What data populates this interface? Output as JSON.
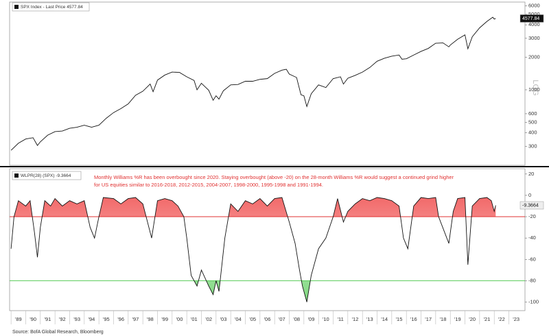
{
  "chart_data": [
    {
      "type": "line",
      "log_scale": true,
      "scale_label": "LOG",
      "x": [
        1989.0,
        1989.5,
        1990.0,
        1990.5,
        1990.8,
        1991.0,
        1991.5,
        1992.0,
        1992.5,
        1993.0,
        1993.5,
        1994.0,
        1994.5,
        1995.0,
        1995.5,
        1996.0,
        1996.5,
        1997.0,
        1997.5,
        1998.0,
        1998.5,
        1998.7,
        1999.0,
        1999.5,
        2000.0,
        2000.5,
        2001.0,
        2001.5,
        2001.7,
        2002.0,
        2002.5,
        2002.8,
        2003.0,
        2003.2,
        2003.5,
        2004.0,
        2004.5,
        2005.0,
        2005.5,
        2006.0,
        2006.5,
        2007.0,
        2007.5,
        2007.8,
        2008.0,
        2008.5,
        2008.8,
        2009.0,
        2009.2,
        2009.5,
        2010.0,
        2010.5,
        2011.0,
        2011.5,
        2011.7,
        2012.0,
        2012.5,
        2013.0,
        2013.5,
        2014.0,
        2014.5,
        2015.0,
        2015.5,
        2015.7,
        2016.0,
        2016.5,
        2017.0,
        2017.5,
        2018.0,
        2018.5,
        2018.9,
        2019.0,
        2019.5,
        2020.0,
        2020.2,
        2020.5,
        2021.0,
        2021.5,
        2021.9,
        2022.0,
        2022.1
      ],
      "series": [
        {
          "name": "SPX Index - Last Price 4577.84",
          "color": "#111111",
          "values": [
            275,
            320,
            350,
            360,
            305,
            330,
            380,
            410,
            415,
            440,
            450,
            470,
            450,
            470,
            545,
            615,
            670,
            740,
            890,
            970,
            1130,
            960,
            1230,
            1370,
            1460,
            1450,
            1320,
            1220,
            1000,
            1150,
            990,
            800,
            880,
            820,
            980,
            1110,
            1120,
            1200,
            1200,
            1250,
            1270,
            1420,
            1520,
            1550,
            1400,
            1300,
            900,
            880,
            700,
            920,
            1110,
            1050,
            1270,
            1320,
            1130,
            1280,
            1360,
            1460,
            1610,
            1840,
            1960,
            2050,
            2100,
            1920,
            1940,
            2100,
            2270,
            2420,
            2700,
            2720,
            2500,
            2600,
            2940,
            3230,
            2400,
            3100,
            3750,
            4300,
            4700,
            4520,
            4577.84
          ]
        }
      ],
      "xlim": [
        1988.9,
        2024.1
      ],
      "ylim": [
        200,
        6500
      ],
      "yticks": [
        300,
        400,
        500,
        600,
        1000,
        2000,
        3000,
        4000,
        5000,
        6000
      ]
    },
    {
      "type": "line",
      "annotation": [
        "Monthly Williams %R has been overbought since 2020. Staying overbought (above -20) on the 28-month Williams %R would suggest a continued grind higher",
        "for US equities similar to 2016-2018, 2012-2015, 2004-2007, 1998-2000, 1995-1998 and 1991-1994."
      ],
      "x": [
        1989.0,
        1989.2,
        1989.5,
        1990.0,
        1990.3,
        1990.6,
        1990.8,
        1991.0,
        1991.3,
        1991.7,
        1992.0,
        1992.5,
        1993.0,
        1993.5,
        1994.0,
        1994.4,
        1994.7,
        1995.0,
        1995.3,
        1996.0,
        1996.5,
        1997.0,
        1997.5,
        1998.0,
        1998.6,
        1999.0,
        1999.5,
        2000.0,
        2000.4,
        2000.8,
        2001.0,
        2001.3,
        2001.7,
        2002.0,
        2002.5,
        2002.8,
        2003.0,
        2003.2,
        2003.6,
        2004.0,
        2004.5,
        2005.0,
        2005.5,
        2006.0,
        2006.5,
        2007.0,
        2007.5,
        2008.0,
        2008.4,
        2008.7,
        2008.9,
        2009.2,
        2009.5,
        2010.0,
        2010.5,
        2011.0,
        2011.3,
        2011.7,
        2012.0,
        2012.5,
        2013.0,
        2013.5,
        2014.0,
        2014.5,
        2015.0,
        2015.5,
        2015.8,
        2016.1,
        2016.5,
        2017.0,
        2017.5,
        2018.0,
        2018.2,
        2018.9,
        2019.2,
        2019.5,
        2020.0,
        2020.2,
        2020.5,
        2021.0,
        2021.5,
        2021.8,
        2022.0,
        2022.1
      ],
      "series": [
        {
          "name": "WLPR(28) (SPX) -9.3664",
          "color": "#111111",
          "values": [
            -50,
            -20,
            -5,
            -10,
            -5,
            -35,
            -58,
            -30,
            -5,
            -10,
            -3,
            -10,
            -5,
            -8,
            -5,
            -30,
            -40,
            -20,
            -2,
            -3,
            -8,
            -3,
            -2,
            -8,
            -40,
            -5,
            -3,
            -5,
            -10,
            -20,
            -40,
            -75,
            -85,
            -70,
            -85,
            -93,
            -80,
            -90,
            -40,
            -8,
            -15,
            -5,
            -8,
            -3,
            -10,
            -3,
            -2,
            -25,
            -45,
            -70,
            -85,
            -100,
            -75,
            -50,
            -40,
            -20,
            -3,
            -25,
            -15,
            -8,
            -3,
            -5,
            -2,
            -3,
            -5,
            -10,
            -40,
            -50,
            -10,
            -2,
            -3,
            -2,
            -20,
            -45,
            -15,
            -3,
            -2,
            -65,
            -10,
            -3,
            -2,
            -5,
            -15,
            -9.3664
          ]
        }
      ],
      "overbought_level": -20,
      "overbought_color": "#e03030",
      "oversold_level": -80,
      "oversold_color": "#55cc55",
      "xlim": [
        1988.9,
        2024.1
      ],
      "ylim": [
        -108,
        25
      ],
      "yticks": [
        20,
        0,
        -20,
        -40,
        -60,
        -80,
        -100
      ],
      "xticks": [
        {
          "value": 1989,
          "label": "'89"
        },
        {
          "value": 1990,
          "label": "'90"
        },
        {
          "value": 1991,
          "label": "'91"
        },
        {
          "value": 1992,
          "label": "'92"
        },
        {
          "value": 1993,
          "label": "'93"
        },
        {
          "value": 1994,
          "label": "'94"
        },
        {
          "value": 1995,
          "label": "'95"
        },
        {
          "value": 1996,
          "label": "'96"
        },
        {
          "value": 1997,
          "label": "'97"
        },
        {
          "value": 1998,
          "label": "'98"
        },
        {
          "value": 1999,
          "label": "'99"
        },
        {
          "value": 2000,
          "label": "'00"
        },
        {
          "value": 2001,
          "label": "'01"
        },
        {
          "value": 2002,
          "label": "'02"
        },
        {
          "value": 2003,
          "label": "'03"
        },
        {
          "value": 2004,
          "label": "'04"
        },
        {
          "value": 2005,
          "label": "'05"
        },
        {
          "value": 2006,
          "label": "'06"
        },
        {
          "value": 2007,
          "label": "'07"
        },
        {
          "value": 2008,
          "label": "'08"
        },
        {
          "value": 2009,
          "label": "'09"
        },
        {
          "value": 2010,
          "label": "'10"
        },
        {
          "value": 2011,
          "label": "'11"
        },
        {
          "value": 2012,
          "label": "'12"
        },
        {
          "value": 2013,
          "label": "'13"
        },
        {
          "value": 2014,
          "label": "'14"
        },
        {
          "value": 2015,
          "label": "'15"
        },
        {
          "value": 2016,
          "label": "'16"
        },
        {
          "value": 2017,
          "label": "'17"
        },
        {
          "value": 2018,
          "label": "'18"
        },
        {
          "value": 2019,
          "label": "'19"
        },
        {
          "value": 2020,
          "label": "'20"
        },
        {
          "value": 2021,
          "label": "'21"
        },
        {
          "value": 2022,
          "label": "'22"
        },
        {
          "value": 2023,
          "label": "'23"
        }
      ]
    }
  ],
  "source": "Source: BofA Global Research, Bloomberg"
}
